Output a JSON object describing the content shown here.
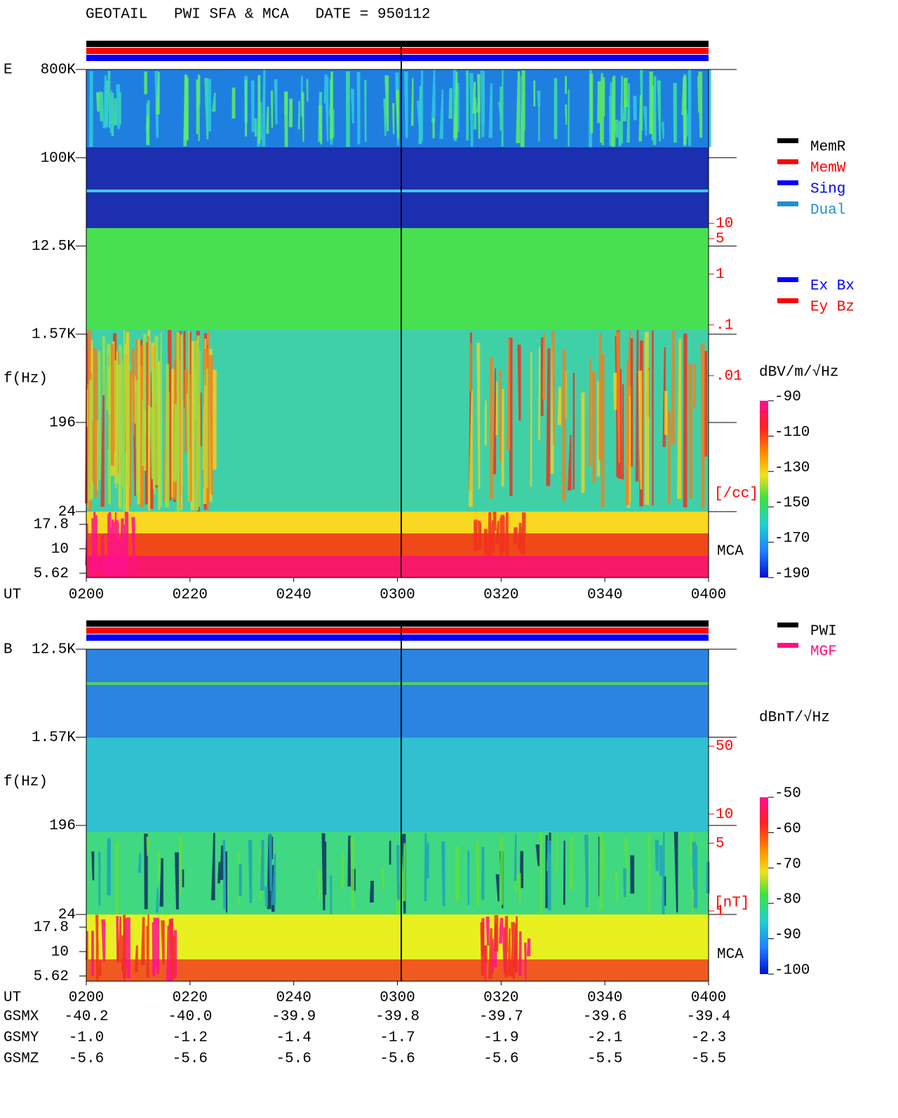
{
  "title": "GEOTAIL   PWI SFA & MCA   DATE = 950112",
  "chart_data": [
    {
      "type": "spectrogram",
      "panel_label": "E",
      "ylabel": "f(Hz)",
      "log_y": true,
      "ylim": [
        24,
        800000
      ],
      "yticks": [
        {
          "value": 800000,
          "label": "800K"
        },
        {
          "value": 100000,
          "label": "100K"
        },
        {
          "value": 12500,
          "label": "12.5K"
        },
        {
          "value": 1570,
          "label": "1.57K"
        },
        196,
        24
      ],
      "mca_label": "MCA",
      "mca_ticks": [
        17.8,
        10,
        5.62
      ],
      "xlabel": "UT",
      "categories": [
        "0200",
        "0220",
        "0240",
        "0300",
        "0320",
        "0340",
        "0400"
      ],
      "y2_label": "[/cc]",
      "y2_log": true,
      "y2lim": [
        2.1e-05,
        10700
      ],
      "y2_color": "#ff0000",
      "y2ticks": [
        10,
        5,
        1,
        {
          "value": 0.1,
          "label": ".1"
        },
        {
          "value": 0.01,
          "label": ".01"
        }
      ],
      "colorbar": {
        "label": "dBV/m/√Hz",
        "lim": [
          -190,
          -90
        ],
        "ticks": [
          -90,
          -110,
          -130,
          -150,
          -170,
          -190
        ]
      },
      "legend": [
        {
          "name": "MemR",
          "color": "#000000"
        },
        {
          "name": "MemW",
          "color": "#ff0000"
        },
        {
          "name": "Sing",
          "color": "#0000ff"
        },
        {
          "name": "Dual",
          "color": "#2090d0"
        },
        {
          "name": "Ex Bx",
          "color": "#0000ff"
        },
        {
          "name": "Ey Bz",
          "color": "#ff0000"
        }
      ]
    },
    {
      "type": "spectrogram",
      "panel_label": "B",
      "ylabel": "f(Hz)",
      "log_y": true,
      "ylim": [
        24,
        12500
      ],
      "yticks": [
        {
          "value": 12500,
          "label": "12.5K"
        },
        {
          "value": 1570,
          "label": "1.57K"
        },
        196,
        24
      ],
      "mca_label": "MCA",
      "mca_ticks": [
        17.8,
        10,
        5.62
      ],
      "xlabel": "UT",
      "categories": [
        "0200",
        "0220",
        "0240",
        "0300",
        "0320",
        "0340",
        "0400"
      ],
      "y2_label": "[nT]",
      "y2_log": true,
      "y2lim": [
        0.92,
        500
      ],
      "y2_color": "#ff0000",
      "y2ticks": [
        50,
        10,
        5,
        1
      ],
      "colorbar": {
        "label": "dBnT/√Hz",
        "lim": [
          -100,
          -50
        ],
        "ticks": [
          -50,
          -60,
          -70,
          -80,
          -90,
          -100
        ]
      },
      "legend": [
        {
          "name": "PWI",
          "color": "#000000"
        },
        {
          "name": "MGF",
          "color": "#ff1080"
        }
      ]
    }
  ],
  "orbit": {
    "rows": [
      {
        "name": "GSMX",
        "values": [
          "-40.2",
          "-40.0",
          "-39.9",
          "-39.8",
          "-39.7",
          "-39.6",
          "-39.4"
        ]
      },
      {
        "name": "GSMY",
        "values": [
          "-1.0",
          "-1.2",
          "-1.4",
          "-1.7",
          "-1.9",
          "-2.1",
          "-2.3"
        ]
      },
      {
        "name": "GSMZ",
        "values": [
          "-5.6",
          "-5.6",
          "-5.6",
          "-5.6",
          "-5.6",
          "-5.5",
          "-5.5"
        ]
      }
    ]
  }
}
